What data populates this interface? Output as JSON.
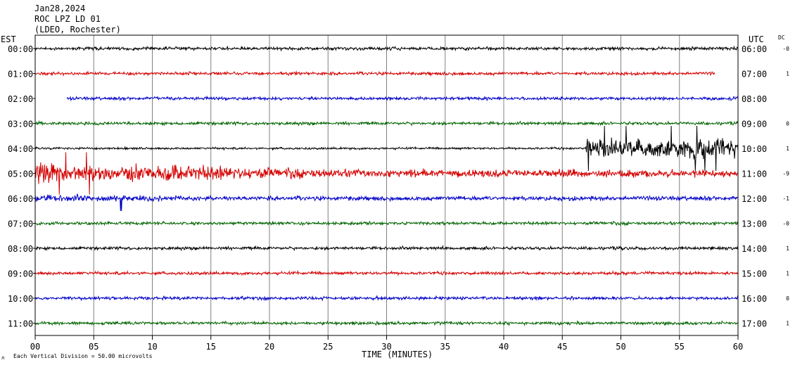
{
  "header": {
    "date": "Jan28,2024",
    "station": "ROC LPZ LD 01",
    "network": "(LDEO, Rochester)"
  },
  "left_tz": "EST",
  "right_tz": "UTC",
  "dc_label": "DC",
  "footer": {
    "scale_text": "Each Vertical Division =   50.00 microvolts",
    "corner_mark": "л"
  },
  "colors": {
    "cycle": [
      "#000000",
      "#d40000",
      "#0000c8",
      "#006400"
    ],
    "grid": "#808080",
    "frame": "#000000"
  },
  "chart_data": {
    "type": "line",
    "subtype": "helicorder",
    "xlabel": "TIME (MINUTES)",
    "xlim": [
      0,
      60
    ],
    "x_ticks": [
      "00",
      "05",
      "10",
      "15",
      "20",
      "25",
      "30",
      "35",
      "40",
      "45",
      "50",
      "55",
      "60"
    ],
    "grid": true,
    "traces": [
      {
        "left_label": "00:00",
        "right_label": "06:00",
        "dc": "-0",
        "start_min": 0,
        "end_min": 60,
        "activity": "quiet"
      },
      {
        "left_label": "01:00",
        "right_label": "07:00",
        "dc": "1",
        "start_min": 0,
        "end_min": 58,
        "activity": "quiet"
      },
      {
        "left_label": "02:00",
        "right_label": "08:00",
        "dc": "",
        "start_min": 2.7,
        "end_min": 60,
        "activity": "quiet"
      },
      {
        "left_label": "03:00",
        "right_label": "09:00",
        "dc": "0",
        "start_min": 0,
        "end_min": 60,
        "activity": "quiet"
      },
      {
        "left_label": "04:00",
        "right_label": "10:00",
        "dc": "1",
        "start_min": 0,
        "end_min": 60,
        "activity": "noisy_after_47"
      },
      {
        "left_label": "05:00",
        "right_label": "11:00",
        "dc": "-9",
        "start_min": 0,
        "end_min": 60,
        "activity": "event_early"
      },
      {
        "left_label": "06:00",
        "right_label": "12:00",
        "dc": "-1",
        "start_min": 0,
        "end_min": 60,
        "activity": "moderate"
      },
      {
        "left_label": "07:00",
        "right_label": "13:00",
        "dc": "-0",
        "start_min": 0,
        "end_min": 60,
        "activity": "quiet"
      },
      {
        "left_label": "08:00",
        "right_label": "14:00",
        "dc": "1",
        "start_min": 0,
        "end_min": 60,
        "activity": "quiet"
      },
      {
        "left_label": "09:00",
        "right_label": "15:00",
        "dc": "1",
        "start_min": 0,
        "end_min": 60,
        "activity": "quiet"
      },
      {
        "left_label": "10:00",
        "right_label": "16:00",
        "dc": "0",
        "start_min": 0,
        "end_min": 60,
        "activity": "quiet"
      },
      {
        "left_label": "11:00",
        "right_label": "17:00",
        "dc": "1",
        "start_min": 0,
        "end_min": 60,
        "activity": "quiet"
      }
    ]
  }
}
